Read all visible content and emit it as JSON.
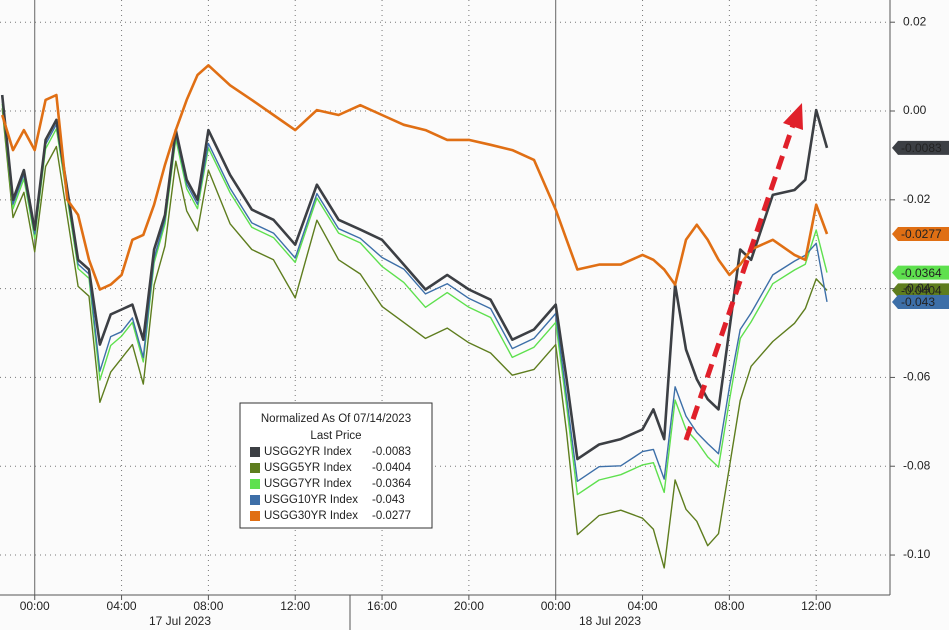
{
  "chart_data": {
    "type": "line",
    "legend_title": "Normalized As Of 07/14/2023",
    "legend_subtitle": "Last Price",
    "date_labels": [
      "17 Jul 2023",
      "18 Jul 2023"
    ],
    "x": [
      -1.5,
      -1,
      -0.5,
      0,
      0.5,
      1,
      1.5,
      2,
      2.5,
      3,
      3.5,
      4,
      4.5,
      5,
      5.5,
      6,
      6.5,
      7,
      7.5,
      8,
      9,
      10,
      11,
      12,
      13,
      14,
      15,
      16,
      17,
      18,
      19,
      20,
      21,
      22,
      23,
      24,
      24.5,
      25,
      26,
      27,
      28,
      28.5,
      29,
      29.5,
      30,
      30.5,
      31,
      31.5,
      32,
      32.5,
      33,
      34,
      35,
      35.5,
      36,
      36.5
    ],
    "xlim": [
      -1.6,
      39.4
    ],
    "xticks": [
      {
        "value": 0,
        "label": "00:00"
      },
      {
        "value": 4,
        "label": "04:00"
      },
      {
        "value": 8,
        "label": "08:00"
      },
      {
        "value": 12,
        "label": "12:00"
      },
      {
        "value": 16,
        "label": "16:00"
      },
      {
        "value": 20,
        "label": "20:00"
      },
      {
        "value": 24,
        "label": "00:00"
      },
      {
        "value": 28,
        "label": "04:00"
      },
      {
        "value": 32,
        "label": "08:00"
      },
      {
        "value": 36,
        "label": "12:00"
      }
    ],
    "ylim": [
      -0.109,
      0.025
    ],
    "yticks": [
      0.02,
      {
        "value": 0,
        "label": "0.00"
      },
      -0.02,
      -0.04,
      -0.06,
      -0.08,
      {
        "value": -0.1,
        "label": "-0.10"
      }
    ],
    "grid": true,
    "series": [
      {
        "name": "USGG2YR Index",
        "color": "#3c3f44",
        "last_price": -0.0083,
        "values": [
          0.0036,
          -0.02,
          -0.0133,
          -0.0267,
          -0.0065,
          -0.002,
          -0.0178,
          -0.0335,
          -0.0357,
          -0.0526,
          -0.0458,
          -0.0447,
          -0.0436,
          -0.0515,
          -0.0312,
          -0.0234,
          -0.0043,
          -0.0155,
          -0.02,
          -0.0043,
          -0.0144,
          -0.0222,
          -0.0245,
          -0.0301,
          -0.0166,
          -0.0245,
          -0.0267,
          -0.029,
          -0.0346,
          -0.0402,
          -0.0369,
          -0.0402,
          -0.0425,
          -0.0515,
          -0.0492,
          -0.0436,
          -0.0604,
          -0.0784,
          -0.0751,
          -0.0739,
          -0.0717,
          -0.0672,
          -0.0739,
          -0.0391,
          -0.0537,
          -0.0604,
          -0.0649,
          -0.0672,
          -0.0492,
          -0.0312,
          -0.0335,
          -0.0189,
          -0.0178,
          -0.0155,
          0.0002,
          -0.0083
        ]
      },
      {
        "name": "USGG5YR Index",
        "color": "#5e7d1e",
        "last_price": -0.0404,
        "values": [
          0.0006,
          -0.024,
          -0.0183,
          -0.0317,
          -0.0125,
          -0.008,
          -0.0238,
          -0.0395,
          -0.0417,
          -0.0656,
          -0.0588,
          -0.0557,
          -0.0526,
          -0.0615,
          -0.0392,
          -0.0304,
          -0.0113,
          -0.0225,
          -0.027,
          -0.0133,
          -0.0254,
          -0.0312,
          -0.0335,
          -0.0421,
          -0.0246,
          -0.0335,
          -0.0367,
          -0.044,
          -0.0476,
          -0.0512,
          -0.0489,
          -0.0522,
          -0.0545,
          -0.0595,
          -0.0582,
          -0.0526,
          -0.0724,
          -0.0954,
          -0.0911,
          -0.0899,
          -0.0917,
          -0.0942,
          -0.1029,
          -0.0831,
          -0.0897,
          -0.0924,
          -0.0979,
          -0.0952,
          -0.0802,
          -0.0652,
          -0.0575,
          -0.0519,
          -0.0478,
          -0.0445,
          -0.0378,
          -0.0404
        ]
      },
      {
        "name": "USGG7YR Index",
        "color": "#5ee04e",
        "last_price": -0.0364,
        "values": [
          0.0016,
          -0.022,
          -0.0153,
          -0.0287,
          -0.0085,
          -0.004,
          -0.0198,
          -0.0355,
          -0.0377,
          -0.0606,
          -0.0528,
          -0.0507,
          -0.0476,
          -0.0565,
          -0.0342,
          -0.0254,
          -0.0063,
          -0.0175,
          -0.022,
          -0.0083,
          -0.0184,
          -0.0262,
          -0.0285,
          -0.0341,
          -0.0196,
          -0.0275,
          -0.0297,
          -0.035,
          -0.0386,
          -0.0442,
          -0.0409,
          -0.0442,
          -0.0465,
          -0.0555,
          -0.0532,
          -0.0476,
          -0.0664,
          -0.0864,
          -0.0831,
          -0.0819,
          -0.0797,
          -0.0792,
          -0.0859,
          -0.0651,
          -0.0717,
          -0.0744,
          -0.0779,
          -0.0802,
          -0.0652,
          -0.0512,
          -0.0475,
          -0.0389,
          -0.0358,
          -0.0345,
          -0.0268,
          -0.0364
        ]
      },
      {
        "name": "USGG10YR Index",
        "color": "#3d6fa8",
        "last_price": -0.043,
        "values": [
          0.0026,
          -0.021,
          -0.0143,
          -0.0277,
          -0.0075,
          -0.003,
          -0.0188,
          -0.0345,
          -0.0367,
          -0.0586,
          -0.0508,
          -0.0497,
          -0.0466,
          -0.0555,
          -0.0332,
          -0.0244,
          -0.0053,
          -0.0165,
          -0.021,
          -0.0073,
          -0.0174,
          -0.0252,
          -0.0275,
          -0.0331,
          -0.0186,
          -0.0265,
          -0.0287,
          -0.033,
          -0.0356,
          -0.0412,
          -0.0389,
          -0.0422,
          -0.0445,
          -0.0535,
          -0.0512,
          -0.0456,
          -0.0644,
          -0.0834,
          -0.0801,
          -0.0799,
          -0.0767,
          -0.0762,
          -0.0829,
          -0.0621,
          -0.0687,
          -0.0724,
          -0.0749,
          -0.0772,
          -0.0622,
          -0.0492,
          -0.0455,
          -0.0369,
          -0.0338,
          -0.0325,
          -0.0298,
          -0.043
        ]
      },
      {
        "name": "USGG30YR Index",
        "color": "#e06f14",
        "last_price": -0.0277,
        "values": [
          -0.0009,
          -0.0088,
          -0.0043,
          -0.0088,
          0.0025,
          0.0036,
          -0.02,
          -0.0234,
          -0.0335,
          -0.0402,
          -0.0391,
          -0.0369,
          -0.029,
          -0.0279,
          -0.0211,
          -0.0121,
          -0.0043,
          0.0025,
          0.0081,
          0.0103,
          0.0058,
          0.0025,
          -0.0009,
          -0.0043,
          0.0002,
          -0.0009,
          0.0013,
          -0.0009,
          -0.0031,
          -0.0043,
          -0.0065,
          -0.0065,
          -0.0076,
          -0.0088,
          -0.011,
          -0.0222,
          -0.029,
          -0.0357,
          -0.0346,
          -0.0346,
          -0.0324,
          -0.0335,
          -0.0357,
          -0.0391,
          -0.029,
          -0.0256,
          -0.029,
          -0.0335,
          -0.0369,
          -0.0346,
          -0.0312,
          -0.029,
          -0.0324,
          -0.0335,
          -0.0211,
          -0.0277
        ]
      }
    ]
  }
}
